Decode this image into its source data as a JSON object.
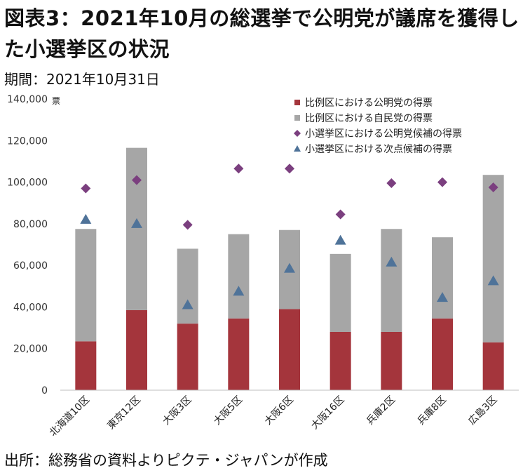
{
  "header": {
    "title": "図表3：2021年10月の総選挙で公明党が議席を獲得した小選挙区の状況",
    "subtitle": "期間：2021年10月31日"
  },
  "footer": {
    "source": "出所：総務省の資料よりピクテ・ジャパンが作成"
  },
  "colors": {
    "komeito_pr": "#a4353c",
    "ldp_pr": "#a6a6a6",
    "komeito_candidate": "#7b3f7f",
    "runner_up": "#4f7399",
    "axis": "#bfbfbf"
  },
  "chart_data": {
    "type": "bar",
    "stacked": true,
    "title": "",
    "xlabel": "",
    "ylabel": "",
    "y_unit": "票",
    "ylim": [
      0,
      140000
    ],
    "yticks": [
      "0",
      "20,000",
      "40,000",
      "60,000",
      "80,000",
      "100,000",
      "120,000",
      "140,000"
    ],
    "ytick_values": [
      0,
      20000,
      40000,
      60000,
      80000,
      100000,
      120000,
      140000
    ],
    "grid": false,
    "legend_position": "top-right",
    "categories": [
      "北海道10区",
      "東京12区",
      "大阪3区",
      "大阪5区",
      "大阪6区",
      "大阪16区",
      "兵庫2区",
      "兵庫8区",
      "広島3区"
    ],
    "series": [
      {
        "name": "比例区における公明党の得票",
        "kind": "bar",
        "marker": "square",
        "values": [
          23500,
          38500,
          32000,
          34500,
          39000,
          28000,
          28000,
          34500,
          23000
        ]
      },
      {
        "name": "比例区における自民党の得票",
        "kind": "bar",
        "marker": "square",
        "values": [
          54000,
          78000,
          36000,
          40500,
          38000,
          37500,
          49500,
          39000,
          80500
        ]
      },
      {
        "name": "小選挙区における公明党候補の得票",
        "kind": "scatter",
        "marker": "diamond",
        "values": [
          97000,
          101000,
          79500,
          106500,
          106500,
          84500,
          99500,
          100000,
          97500
        ]
      },
      {
        "name": "小選挙区における次点候補の得票",
        "kind": "scatter",
        "marker": "triangle",
        "values": [
          82000,
          80000,
          41000,
          47500,
          58500,
          72000,
          61500,
          44500,
          52500
        ]
      }
    ]
  }
}
